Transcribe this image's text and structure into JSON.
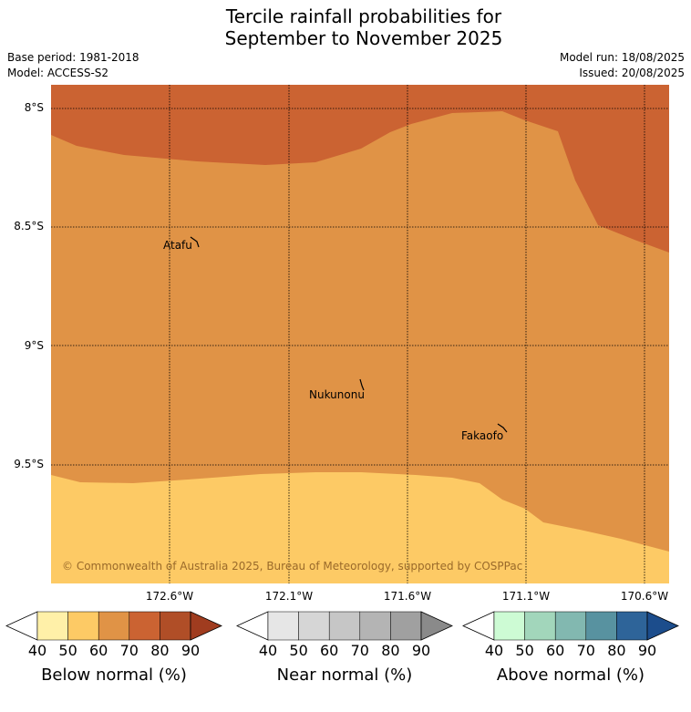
{
  "title_line1": "Tercile rainfall probabilities for",
  "title_line2": "September to November 2025",
  "base_period": "Base period: 1981-2018",
  "model": "Model: ACCESS-S2",
  "model_run": "Model run: 18/08/2025",
  "issued": "Issued: 20/08/2025",
  "map": {
    "lat_ticks": [
      "8°S",
      "8.5°S",
      "9°S",
      "9.5°S"
    ],
    "lon_ticks": [
      "172.6°W",
      "172.1°W",
      "171.6°W",
      "171.1°W",
      "170.6°W"
    ],
    "places": [
      "Atafu",
      "Nukunonu",
      "Fakaofo"
    ],
    "copyright": "© Commonwealth of Australia 2025, Bureau of Meteorology, supported by COSPPac",
    "region_colors": {
      "below_70": "#cb6332",
      "below_60": "#e09346",
      "below_50": "#fdca65"
    }
  },
  "colorbars": [
    {
      "title": "Below normal (%)",
      "ticks": [
        "40",
        "50",
        "60",
        "70",
        "80",
        "90"
      ],
      "colors": [
        "#ffffff",
        "#fff0a8",
        "#fdca65",
        "#e09346",
        "#cb6332",
        "#b04e27",
        "#a03c1f"
      ]
    },
    {
      "title": "Near normal (%)",
      "ticks": [
        "40",
        "50",
        "60",
        "70",
        "80",
        "90"
      ],
      "colors": [
        "#ffffff",
        "#e6e6e6",
        "#d6d6d6",
        "#c6c6c6",
        "#b4b4b4",
        "#a0a0a0",
        "#8a8a8a"
      ]
    },
    {
      "title": "Above normal (%)",
      "ticks": [
        "40",
        "50",
        "60",
        "70",
        "80",
        "90"
      ],
      "colors": [
        "#ffffff",
        "#cdfbd4",
        "#a2d6bb",
        "#82b8b0",
        "#5892a0",
        "#2e6499",
        "#1c4d8c"
      ]
    }
  ]
}
